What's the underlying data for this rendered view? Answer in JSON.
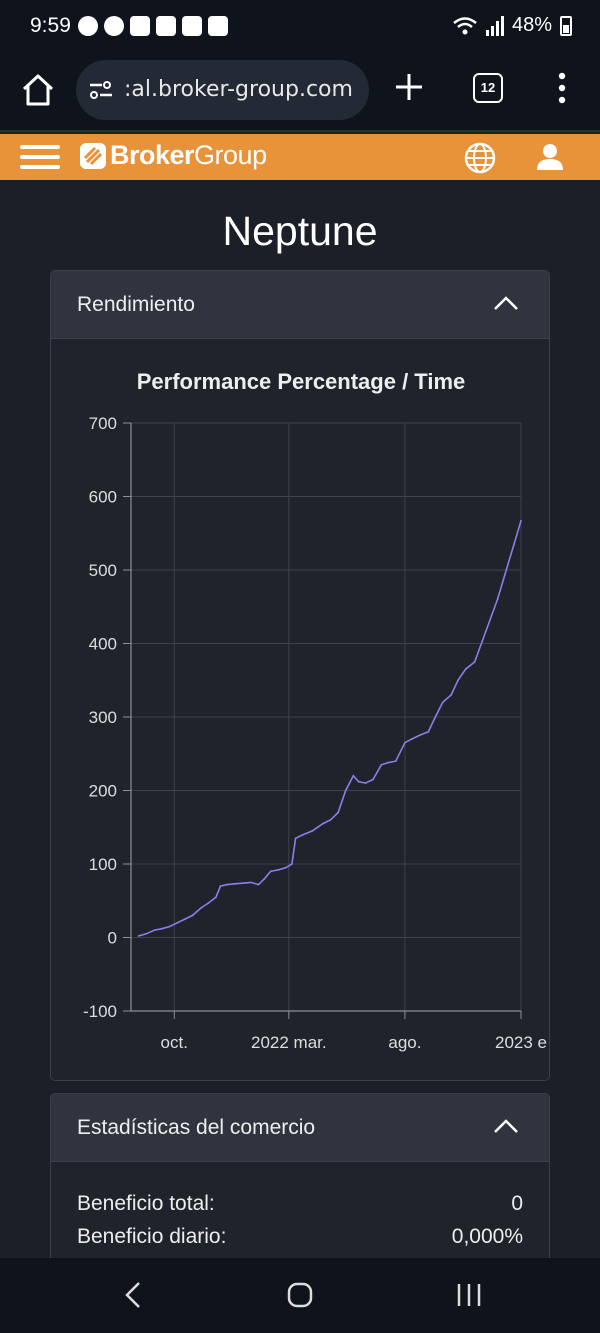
{
  "status_bar": {
    "time": "9:59",
    "battery": "48%"
  },
  "browser": {
    "url": ":al.broker-group.com",
    "tab_count": "12"
  },
  "site": {
    "brand_bold": "Broker",
    "brand_light": "Group",
    "accent_color": "#e8923a"
  },
  "page": {
    "title": "Neptune"
  },
  "performance_card": {
    "title": "Rendimiento"
  },
  "stats_card": {
    "title": "Estadísticas del comercio",
    "rows": [
      {
        "label": "Beneficio total:",
        "value": "0"
      },
      {
        "label": "Beneficio diario:",
        "value": "0,000%"
      }
    ]
  },
  "chart_data": {
    "type": "line",
    "title": "Performance Percentage / Time",
    "xlabel": "",
    "ylabel": "",
    "ylim": [
      -100,
      700
    ],
    "y_ticks": [
      700,
      600,
      500,
      400,
      300,
      200,
      100,
      0,
      -100
    ],
    "x_ticks": [
      "oct.",
      "2022 mar.",
      "ago.",
      "2023 e"
    ],
    "grid": true,
    "series": [
      {
        "color": "#8a7fe8",
        "x": [
          "2021-08-15",
          "2021-08-25",
          "2021-09-05",
          "2021-09-15",
          "2021-09-25",
          "2021-10-05",
          "2021-10-15",
          "2021-10-25",
          "2021-11-05",
          "2021-11-15",
          "2021-11-25",
          "2021-12-01",
          "2021-12-10",
          "2021-12-20",
          "2022-01-01",
          "2022-01-10",
          "2022-01-20",
          "2022-01-28",
          "2022-02-05",
          "2022-02-15",
          "2022-02-25",
          "2022-03-05",
          "2022-03-10",
          "2022-03-20",
          "2022-04-01",
          "2022-04-15",
          "2022-04-25",
          "2022-05-05",
          "2022-05-15",
          "2022-05-25",
          "2022-06-01",
          "2022-06-10",
          "2022-06-20",
          "2022-07-01",
          "2022-07-10",
          "2022-07-20",
          "2022-08-01",
          "2022-08-10",
          "2022-08-20",
          "2022-09-01",
          "2022-09-10",
          "2022-09-20",
          "2022-10-01",
          "2022-10-10",
          "2022-10-20",
          "2022-11-01",
          "2022-12-01",
          "2023-01-01"
        ],
        "y": [
          2,
          5,
          10,
          12,
          15,
          20,
          25,
          30,
          40,
          47,
          55,
          70,
          72,
          73,
          74,
          75,
          72,
          80,
          90,
          92,
          95,
          100,
          135,
          140,
          145,
          155,
          160,
          170,
          200,
          220,
          212,
          210,
          215,
          235,
          238,
          240,
          265,
          270,
          275,
          280,
          300,
          320,
          330,
          350,
          365,
          375,
          460,
          567
        ]
      }
    ]
  }
}
